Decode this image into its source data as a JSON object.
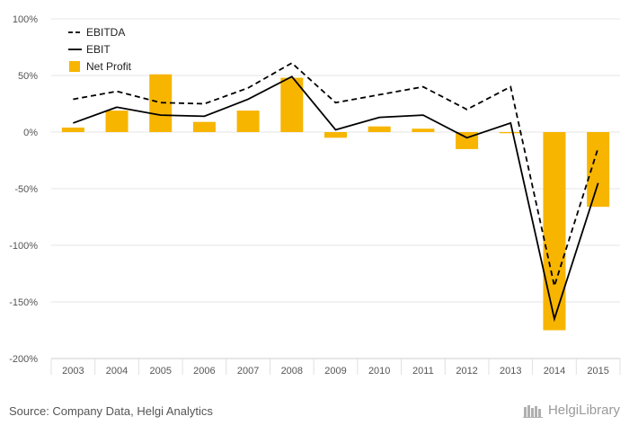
{
  "chart_data": {
    "type": "bar",
    "categories": [
      "2003",
      "2004",
      "2005",
      "2006",
      "2007",
      "2008",
      "2009",
      "2010",
      "2011",
      "2012",
      "2013",
      "2014",
      "2015"
    ],
    "ylim": [
      -200,
      100
    ],
    "yticks": [
      -200,
      -150,
      -100,
      -50,
      0,
      50,
      100
    ],
    "ytick_labels": [
      "-200%",
      "-150%",
      "-100%",
      "-50%",
      "0%",
      "50%",
      "100%"
    ],
    "grid": true,
    "legend_position": "top-left",
    "series": [
      {
        "name": "EBITDA",
        "kind": "line",
        "style": "dashed",
        "color": "#000000",
        "values": [
          29,
          36,
          26,
          25,
          39,
          61,
          26,
          33,
          40,
          20,
          40,
          -136,
          -14
        ]
      },
      {
        "name": "EBIT",
        "kind": "line",
        "style": "solid",
        "color": "#000000",
        "values": [
          8,
          22,
          15,
          14,
          29,
          49,
          2,
          13,
          15,
          -5,
          8,
          -165,
          -45
        ]
      },
      {
        "name": "Net Profit",
        "kind": "bar",
        "color": "#F7B500",
        "values": [
          4,
          19,
          51,
          9,
          19,
          48,
          -5,
          5,
          3,
          -15,
          -1,
          -175,
          -66
        ]
      }
    ]
  },
  "footer": {
    "source": "Source: Company Data, Helgi Analytics",
    "brand": "HelgiLibrary"
  }
}
